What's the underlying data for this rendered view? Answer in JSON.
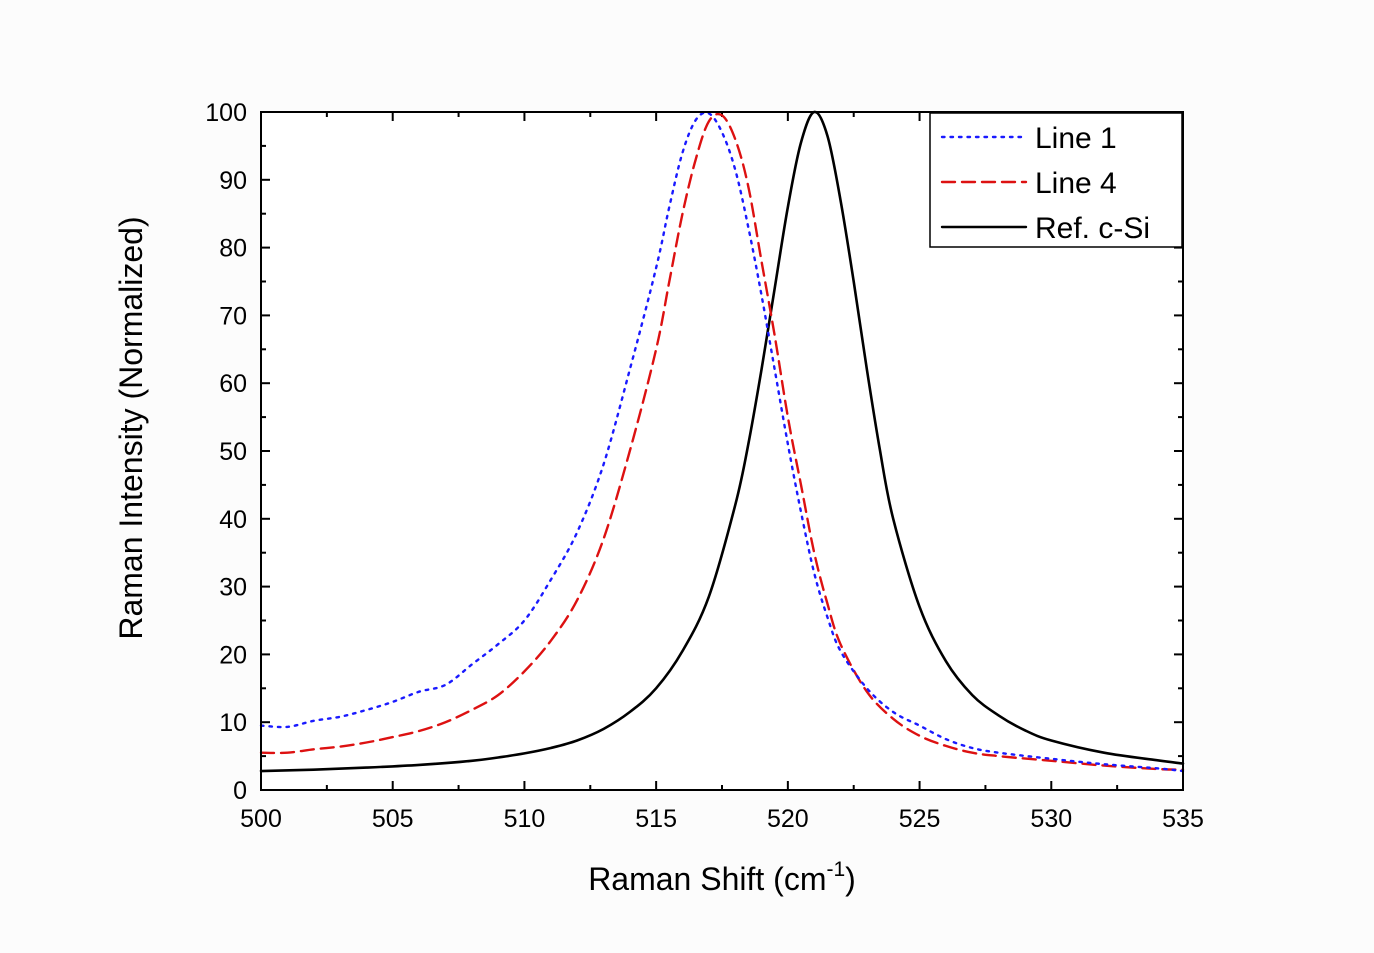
{
  "chart_data": {
    "type": "line",
    "title": "",
    "xlabel": "Raman Shift (cm",
    "xlabel_sup": "-1",
    "xlabel_close": ")",
    "ylabel": "Raman Intensity (Normalized)",
    "xlim": [
      500,
      535
    ],
    "ylim": [
      0,
      100
    ],
    "xticks": [
      500,
      505,
      510,
      515,
      520,
      525,
      530,
      535
    ],
    "yticks": [
      0,
      10,
      20,
      30,
      40,
      50,
      60,
      70,
      80,
      90,
      100
    ],
    "grid": false,
    "legend_position": "top-right",
    "series": [
      {
        "name": "Line 1",
        "color": "#1a1aff",
        "style": "dotted",
        "x": [
          500,
          501,
          502,
          503,
          504,
          505,
          506,
          507,
          508,
          509,
          510,
          511,
          512,
          513,
          514,
          515,
          515.5,
          516,
          516.5,
          517,
          517.5,
          518,
          518.5,
          519,
          519.5,
          520,
          520.5,
          521,
          521.5,
          522,
          523,
          524,
          525,
          526,
          527,
          528,
          530,
          532,
          534,
          535
        ],
        "y": [
          9.5,
          9.3,
          10.2,
          10.8,
          11.8,
          13,
          14.5,
          15.5,
          18.5,
          21.5,
          25,
          31,
          38,
          48,
          62,
          77,
          86,
          94,
          98.8,
          99.8,
          97,
          91.5,
          83,
          73,
          62,
          51,
          41,
          32,
          25.5,
          20.5,
          15,
          11.5,
          9.5,
          7.5,
          6.2,
          5.5,
          4.6,
          3.8,
          3.2,
          2.8
        ]
      },
      {
        "name": "Line 4",
        "color": "#dd1111",
        "style": "dashed",
        "x": [
          500,
          501,
          502,
          503,
          504,
          505,
          506,
          507,
          508,
          509,
          510,
          511,
          512,
          513,
          514,
          515,
          515.5,
          516,
          516.5,
          517,
          517.5,
          518,
          518.5,
          519,
          519.5,
          520,
          520.5,
          521,
          521.5,
          522,
          523,
          524,
          525,
          526,
          527,
          528,
          530,
          532,
          534,
          535
        ],
        "y": [
          5.5,
          5.5,
          6,
          6.4,
          7,
          7.8,
          8.7,
          10,
          11.8,
          14,
          17.5,
          22,
          28,
          37,
          50,
          65,
          75,
          85,
          93,
          98.6,
          99.5,
          96,
          89,
          78,
          67,
          55,
          45,
          35,
          27.5,
          21.5,
          14.5,
          10.5,
          8,
          6.5,
          5.5,
          5,
          4.3,
          3.6,
          3.1,
          3
        ]
      },
      {
        "name": "Ref. c-Si",
        "color": "#000000",
        "style": "solid",
        "x": [
          500,
          502,
          504,
          506,
          508,
          509,
          510,
          511,
          512,
          513,
          514,
          515,
          516,
          517,
          518,
          518.5,
          519,
          519.5,
          520,
          520.5,
          521,
          521.5,
          522,
          522.5,
          523,
          523.5,
          524,
          525,
          526,
          527,
          528,
          529,
          530,
          532,
          534,
          535
        ],
        "y": [
          2.8,
          3,
          3.3,
          3.7,
          4.3,
          4.8,
          5.4,
          6.2,
          7.3,
          9,
          11.5,
          15,
          20.5,
          28.5,
          42,
          51,
          62,
          74,
          86,
          95.5,
          100,
          96.5,
          87,
          75,
          62,
          50,
          40,
          27,
          19,
          14,
          11,
          8.8,
          7.3,
          5.5,
          4.4,
          3.9
        ]
      }
    ]
  }
}
